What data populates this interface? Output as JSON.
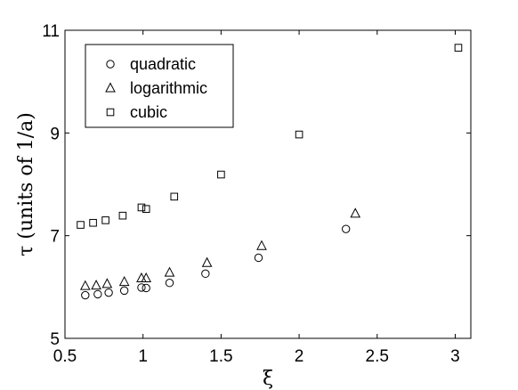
{
  "chart_data": {
    "type": "scatter",
    "title": "",
    "xlabel": "ξ",
    "ylabel": "τ (units of 1/a)",
    "xlim": [
      0.5,
      3.1
    ],
    "ylim": [
      5,
      11
    ],
    "xticks": [
      0.5,
      1,
      1.5,
      2,
      2.5,
      3
    ],
    "xtick_labels": [
      "0.5",
      "1",
      "1.5",
      "2",
      "2.5",
      "3"
    ],
    "yticks": [
      5,
      7,
      9,
      11
    ],
    "ytick_labels": [
      "5",
      "7",
      "9",
      "11"
    ],
    "grid": false,
    "legend_position": "top-left",
    "series": [
      {
        "name": "quadratic",
        "marker": "circle",
        "color": "#000000",
        "x": [
          0.63,
          0.71,
          0.78,
          0.88,
          0.99,
          1.02,
          1.17,
          1.4,
          1.74,
          2.3
        ],
        "y": [
          5.84,
          5.86,
          5.89,
          5.93,
          5.99,
          5.98,
          6.08,
          6.26,
          6.57,
          7.13
        ]
      },
      {
        "name": "logarithmic",
        "marker": "triangle",
        "color": "#000000",
        "x": [
          0.63,
          0.7,
          0.77,
          0.88,
          0.99,
          1.02,
          1.17,
          1.41,
          1.76,
          2.36
        ],
        "y": [
          6.02,
          6.03,
          6.06,
          6.1,
          6.17,
          6.17,
          6.28,
          6.47,
          6.8,
          7.43
        ]
      },
      {
        "name": "cubic",
        "marker": "square",
        "color": "#000000",
        "x": [
          0.6,
          0.68,
          0.76,
          0.87,
          0.99,
          1.02,
          1.2,
          1.5,
          2.0,
          3.02
        ],
        "y": [
          7.21,
          7.25,
          7.3,
          7.39,
          7.55,
          7.52,
          7.76,
          8.19,
          8.97,
          10.66
        ]
      }
    ]
  }
}
